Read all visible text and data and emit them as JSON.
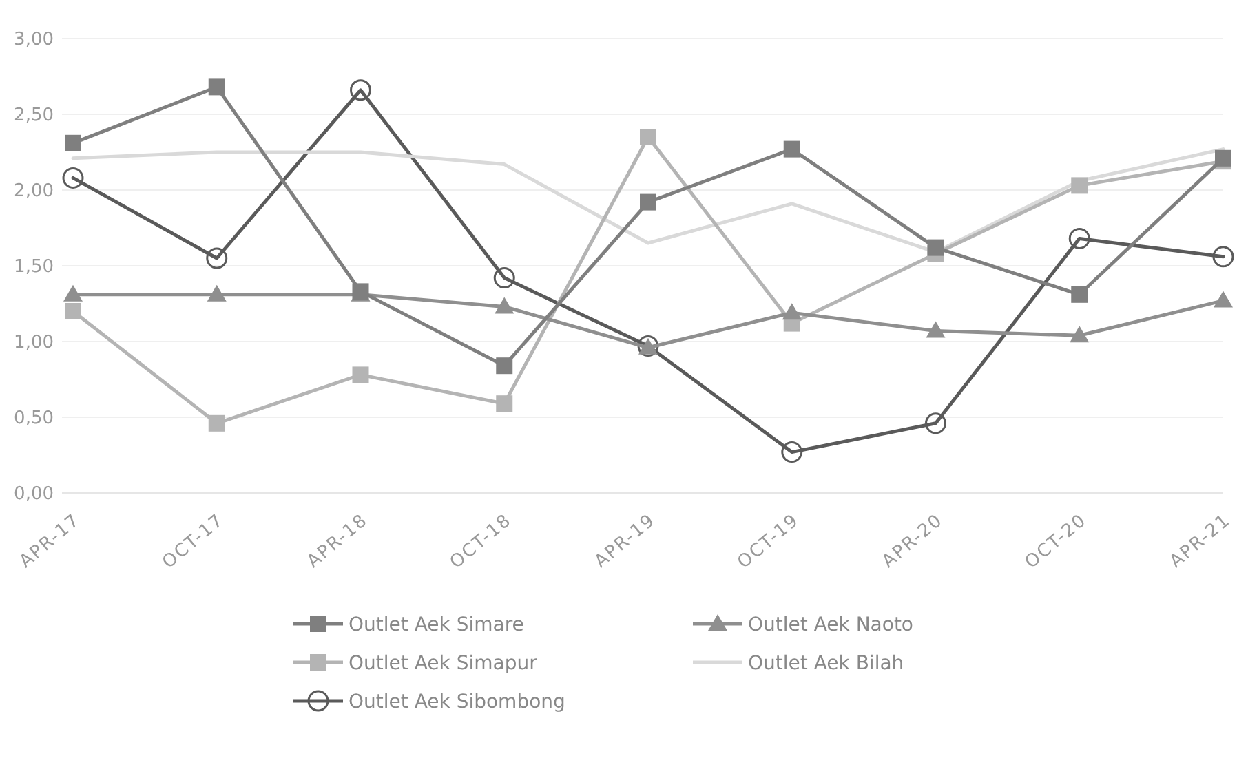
{
  "chart_data": {
    "type": "line",
    "categories": [
      "APR-17",
      "OCT-17",
      "APR-18",
      "OCT-18",
      "APR-19",
      "OCT-19",
      "APR-20",
      "OCT-20",
      "APR-21"
    ],
    "series": [
      {
        "name": "Outlet Aek Simare",
        "color": "#7f7f7f",
        "marker": "square",
        "values": [
          2.31,
          2.68,
          1.33,
          0.84,
          1.92,
          2.27,
          1.62,
          1.31,
          2.21
        ]
      },
      {
        "name": "Outlet Aek Naoto",
        "color": "#8f8f8f",
        "marker": "triangle",
        "values": [
          1.31,
          1.31,
          1.31,
          1.23,
          0.96,
          1.19,
          1.07,
          1.04,
          1.27
        ]
      },
      {
        "name": "Outlet Aek Simapur",
        "color": "#b4b4b4",
        "marker": "square",
        "values": [
          1.2,
          0.46,
          0.78,
          0.59,
          2.35,
          1.12,
          1.58,
          2.03,
          2.19
        ]
      },
      {
        "name": "Outlet Aek Bilah",
        "color": "#d9d9d9",
        "marker": "none",
        "values": [
          2.21,
          2.25,
          2.25,
          2.17,
          1.65,
          1.91,
          1.59,
          2.06,
          2.27
        ]
      },
      {
        "name": "Outlet Aek Sibombong",
        "color": "#5a5a5a",
        "marker": "circle",
        "values": [
          2.08,
          1.55,
          2.66,
          1.42,
          0.97,
          0.27,
          0.46,
          1.68,
          1.56
        ]
      }
    ],
    "ylim": [
      0,
      3
    ],
    "yticks": [
      {
        "value": 0,
        "label": "0,00"
      },
      {
        "value": 0.5,
        "label": "0,50"
      },
      {
        "value": 1,
        "label": "1,00"
      },
      {
        "value": 1.5,
        "label": "1,50"
      },
      {
        "value": 2,
        "label": "2,00"
      },
      {
        "value": 2.5,
        "label": "2,50"
      },
      {
        "value": 3,
        "label": "3,00"
      }
    ],
    "grid": "y",
    "legend": "bottom",
    "line_style": "solid"
  }
}
